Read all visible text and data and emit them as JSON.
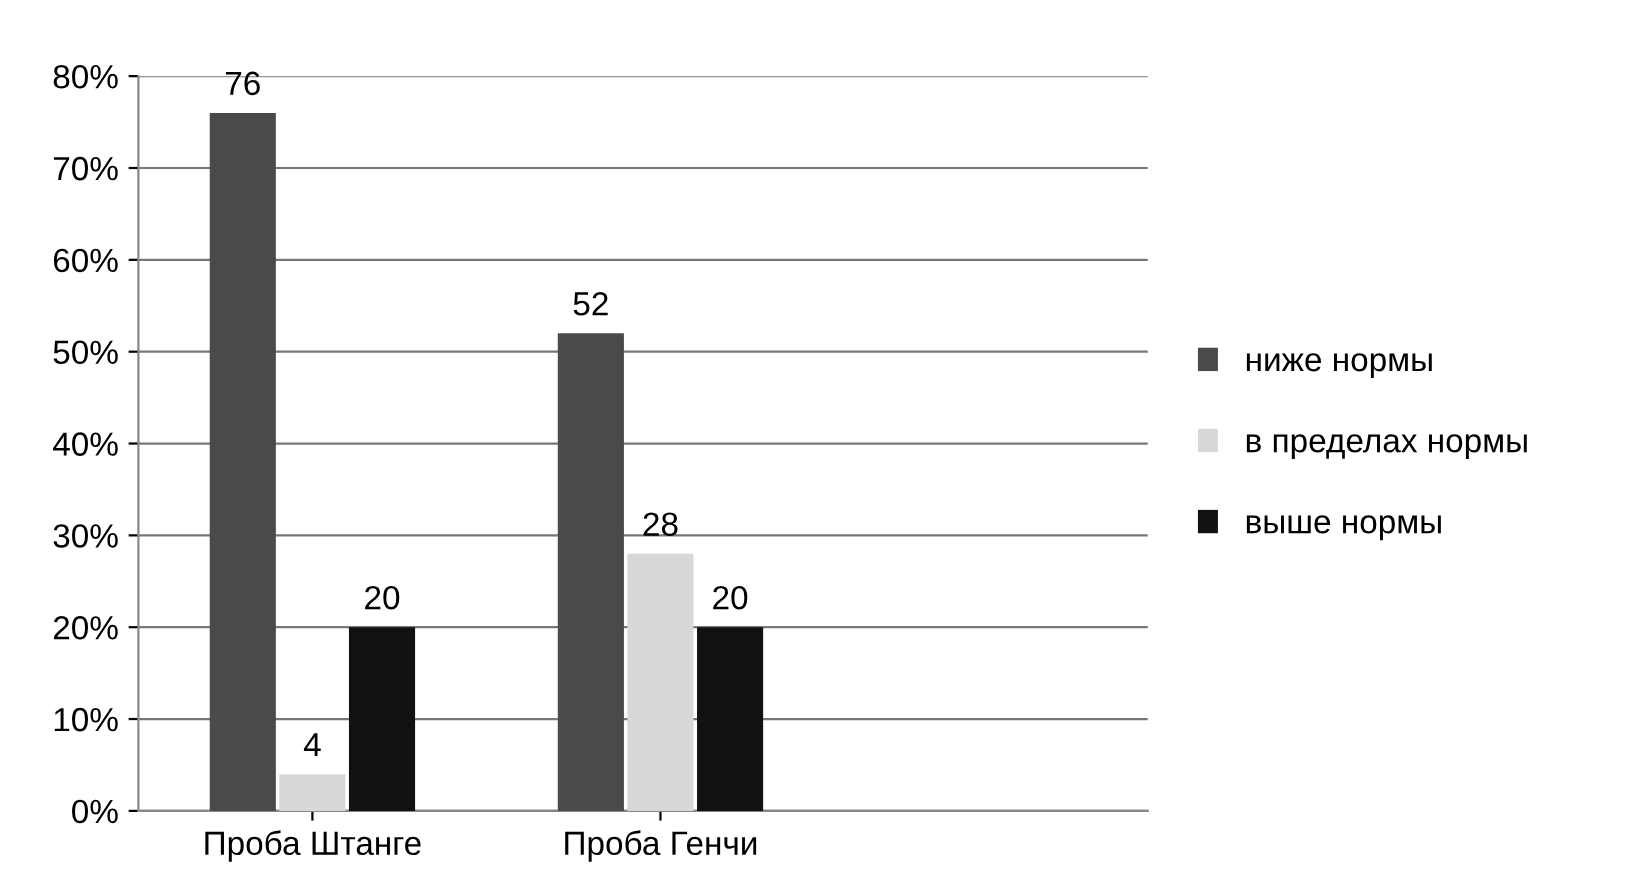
{
  "chart_data": {
    "type": "bar",
    "categories": [
      "Проба Штанге",
      "Проба Генчи"
    ],
    "series": [
      {
        "name": "ниже нормы",
        "color": "#4a4a4a",
        "values": [
          76,
          52
        ]
      },
      {
        "name": "в пределах нормы",
        "color": "#d8d8d8",
        "values": [
          4,
          28
        ]
      },
      {
        "name": "выше нормы",
        "color": "#111111",
        "values": [
          20,
          20
        ]
      }
    ],
    "ylim": [
      0,
      80
    ],
    "yticks": [
      {
        "value": 0,
        "label": "0%"
      },
      {
        "value": 10,
        "label": "10%"
      },
      {
        "value": 20,
        "label": "20%"
      },
      {
        "value": 30,
        "label": "30%"
      },
      {
        "value": 40,
        "label": "40%"
      },
      {
        "value": 50,
        "label": "50%"
      },
      {
        "value": 60,
        "label": "60%"
      },
      {
        "value": 70,
        "label": "70%"
      },
      {
        "value": 80,
        "label": "80%"
      }
    ],
    "grid": "y",
    "legend": "right",
    "data_labels": true
  }
}
